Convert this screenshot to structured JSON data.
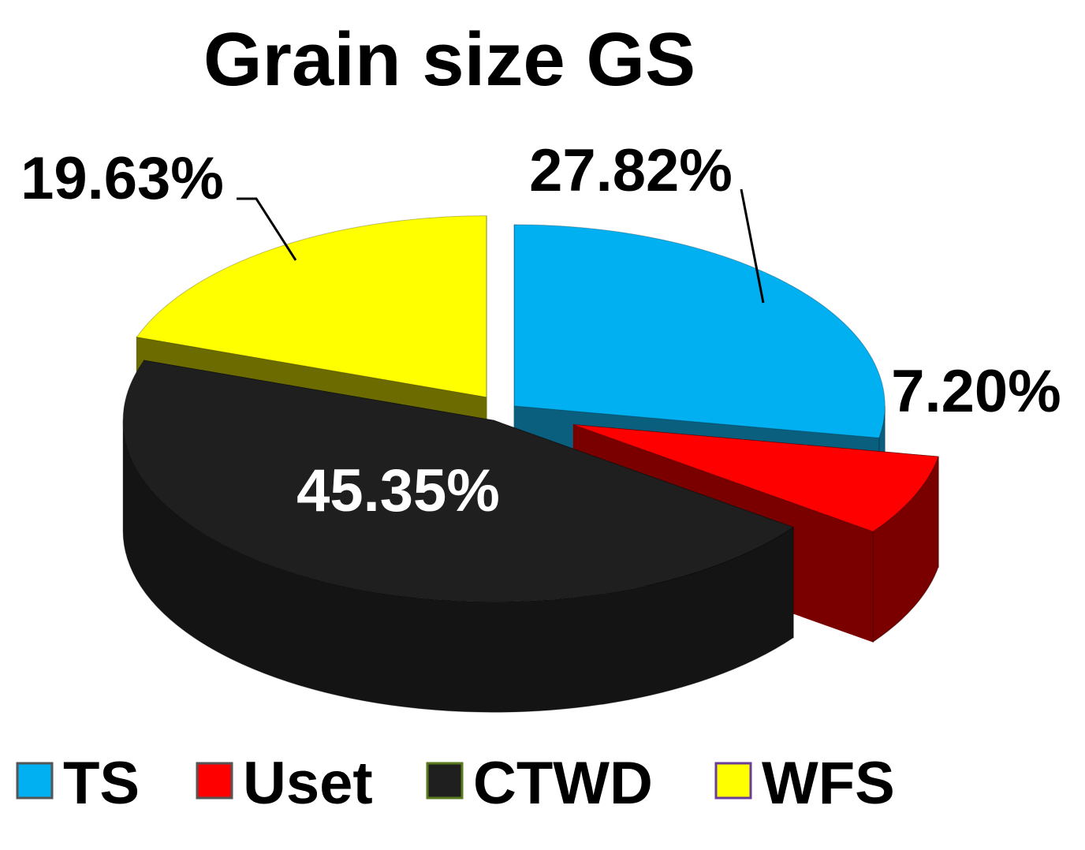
{
  "chart_data": {
    "type": "pie",
    "style": "3d-exploded",
    "title": "Grain size GS",
    "categories": [
      "TS",
      "Uset",
      "CTWD",
      "WFS"
    ],
    "values": [
      27.82,
      7.2,
      45.35,
      19.63
    ],
    "labels": [
      "27.82%",
      "7.20%",
      "45.35%",
      "19.63%"
    ],
    "colors": [
      "#00b0f0",
      "#ff0000",
      "#1f1f1f",
      "#ffff00"
    ],
    "side_colors": [
      "#0a5f7e",
      "#7a0000",
      "#141414",
      "#6b6b00"
    ],
    "legend_border_colors": [
      "#555555",
      "#555555",
      "#5a7a1e",
      "#6a3d9a"
    ],
    "legend": {
      "position": "bottom",
      "entries": [
        "TS",
        "Uset",
        "CTWD",
        "WFS"
      ]
    }
  }
}
